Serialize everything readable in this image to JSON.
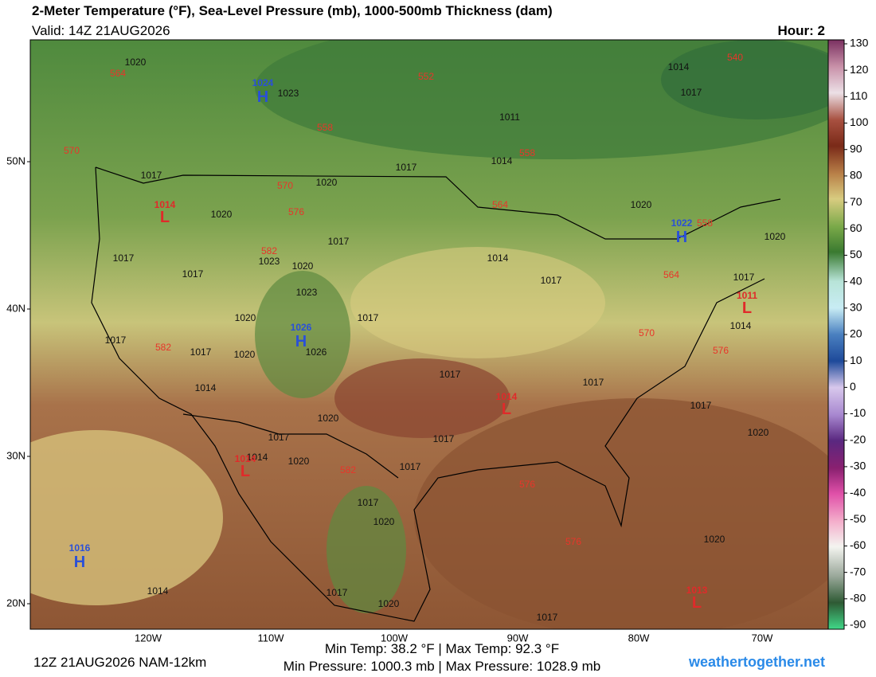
{
  "header": {
    "title": "2-Meter Temperature (°F), Sea-Level Pressure (mb), 1000-500mb Thickness (dam)",
    "valid": "Valid: 14Z 21AUG2026",
    "hour": "Hour: 2"
  },
  "map": {
    "lat_labels": [
      "50N",
      "40N",
      "30N",
      "20N"
    ],
    "lon_labels": [
      "120W",
      "110W",
      "100W",
      "90W",
      "80W",
      "70W"
    ],
    "isobar_labels": [
      1020,
      1023,
      1011,
      1017,
      1014,
      1017,
      1020,
      1020,
      1017,
      1023,
      1020,
      1017,
      1017,
      1014,
      1017,
      1020,
      1020,
      1017,
      1014,
      1023,
      1020,
      1017,
      1017,
      1017,
      1020,
      1026,
      1014,
      1017,
      1017,
      1017,
      1020,
      1017,
      1017,
      1020,
      1014,
      1020,
      1017,
      1017,
      1020,
      1020,
      1014,
      1017,
      1020,
      1017,
      1014,
      1017
    ],
    "thickness_labels": [
      540,
      564,
      552,
      558,
      570,
      558,
      570,
      576,
      564,
      558,
      582,
      564,
      570,
      576,
      582,
      582,
      576,
      576
    ],
    "highs": [
      {
        "letter": "H",
        "pressure": 1024
      },
      {
        "letter": "H",
        "pressure": 1022
      },
      {
        "letter": "H",
        "pressure": 1026
      },
      {
        "letter": "H",
        "pressure": 1016
      }
    ],
    "lows": [
      {
        "letter": "L",
        "pressure": 1014
      },
      {
        "letter": "L",
        "pressure": 1011
      },
      {
        "letter": "L",
        "pressure": 1014
      },
      {
        "letter": "L",
        "pressure": 1014
      },
      {
        "letter": "L",
        "pressure": 1013
      }
    ]
  },
  "colorbar": {
    "ticks": [
      130,
      120,
      110,
      100,
      90,
      80,
      70,
      60,
      50,
      40,
      30,
      20,
      10,
      0,
      -10,
      -20,
      -30,
      -40,
      -50,
      -60,
      -70,
      -80,
      -90
    ]
  },
  "footer": {
    "run": "12Z 21AUG2026 NAM-12km",
    "temp": "Min Temp: 38.2 °F | Max Temp: 92.3 °F",
    "pressure": "Min Pressure: 1000.3 mb | Max Pressure: 1028.9 mb",
    "site": "weathertogether.net"
  }
}
